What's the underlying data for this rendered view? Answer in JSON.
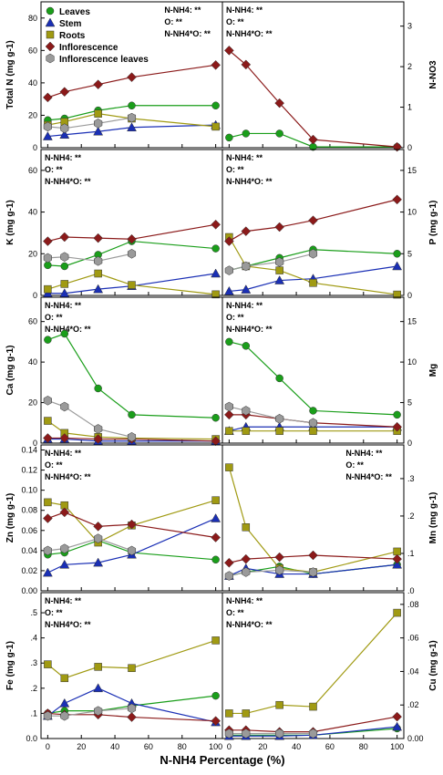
{
  "figure": {
    "xlabel": "N-NH4 Percentage (%)",
    "xticks": [
      0,
      20,
      40,
      60,
      80,
      100
    ],
    "xlim": [
      -4,
      104
    ]
  },
  "legend": [
    {
      "name": "Leaves",
      "color": "#1a9e1a",
      "marker": "circle"
    },
    {
      "name": "Stem",
      "color": "#1a2fb5",
      "marker": "triangle"
    },
    {
      "name": "Roots",
      "color": "#a09a12",
      "marker": "square"
    },
    {
      "name": "Inflorescence",
      "color": "#8b1a1a",
      "marker": "diamond"
    },
    {
      "name": "Inflorescence leaves",
      "color": "#9a9a9a",
      "marker": "hexagon"
    }
  ],
  "chart_data": [
    {
      "type": "line",
      "ylabel": "Total N (mg g-1)",
      "axis_side": "left",
      "ylim": [
        0,
        90
      ],
      "yticks": [
        "0",
        "20",
        "40",
        "60",
        "80"
      ],
      "ytick_values": [
        0,
        20,
        40,
        60,
        80
      ],
      "annotations": [
        "N-NH4: **",
        "O: **",
        "N-NH4*O: **"
      ],
      "ann_pos": "top-right",
      "x": [
        0,
        10,
        30,
        50,
        100
      ],
      "series": [
        {
          "name": "Leaves",
          "values": [
            17,
            18,
            23,
            26,
            26
          ]
        },
        {
          "name": "Stem",
          "values": [
            7,
            8,
            10,
            12.5,
            14
          ]
        },
        {
          "name": "Roots",
          "values": [
            14,
            16,
            21,
            18,
            13
          ]
        },
        {
          "name": "Inflorescence",
          "values": [
            31,
            34.5,
            39,
            43.5,
            51
          ]
        },
        {
          "name": "Inflorescence leaves",
          "values": [
            13,
            12,
            15,
            18.5,
            null
          ]
        }
      ]
    },
    {
      "type": "line",
      "ylabel": "N-NO3",
      "axis_side": "right",
      "ylim": [
        0,
        3.6
      ],
      "yticks": [
        "0",
        "1",
        "2",
        "3"
      ],
      "ytick_values": [
        0,
        1,
        2,
        3
      ],
      "annotations": [
        "N-NH4: **",
        "O: **",
        "N-NH4*O: **"
      ],
      "ann_pos": "top-left",
      "x": [
        0,
        10,
        30,
        50,
        100
      ],
      "series": [
        {
          "name": "Leaves",
          "values": [
            0.25,
            0.35,
            0.35,
            0.02,
            0.02
          ]
        },
        {
          "name": "Inflorescence",
          "values": [
            2.4,
            2.05,
            1.1,
            0.2,
            0.02
          ]
        }
      ]
    },
    {
      "type": "line",
      "ylabel": "K (mg g-1)",
      "axis_side": "left",
      "ylim": [
        0,
        70
      ],
      "yticks": [
        "0",
        "20",
        "40",
        "60"
      ],
      "ytick_values": [
        0,
        20,
        40,
        60
      ],
      "annotations": [
        "N-NH4: **",
        "O: **",
        "N-NH4*O: **"
      ],
      "ann_pos": "top-left",
      "x": [
        0,
        10,
        30,
        50,
        100
      ],
      "series": [
        {
          "name": "Leaves",
          "values": [
            14.5,
            14,
            19.5,
            26,
            22.5
          ]
        },
        {
          "name": "Stem",
          "values": [
            1,
            1,
            3,
            4.5,
            10.5
          ]
        },
        {
          "name": "Roots",
          "values": [
            3,
            5.5,
            10.5,
            5,
            0.5
          ]
        },
        {
          "name": "Inflorescence",
          "values": [
            26,
            28,
            27.5,
            27,
            34
          ]
        },
        {
          "name": "Inflorescence leaves",
          "values": [
            18,
            18.5,
            16.5,
            20,
            null
          ]
        }
      ]
    },
    {
      "type": "line",
      "ylabel": "P (mg g-1)",
      "axis_side": "right",
      "ylim": [
        0,
        17.5
      ],
      "yticks": [
        "0",
        "5",
        "10",
        "15"
      ],
      "ytick_values": [
        0,
        5,
        10,
        15
      ],
      "annotations": [
        "N-NH4: **",
        "O: **",
        "N-NH4*O: **"
      ],
      "ann_pos": "top-left",
      "x": [
        0,
        10,
        30,
        50,
        100
      ],
      "series": [
        {
          "name": "Leaves",
          "values": [
            3,
            3.5,
            4.5,
            5.5,
            5
          ]
        },
        {
          "name": "Stem",
          "values": [
            0.5,
            0.7,
            1.8,
            2,
            3.5
          ]
        },
        {
          "name": "Roots",
          "values": [
            7,
            3.5,
            3,
            1.5,
            0.1
          ]
        },
        {
          "name": "Inflorescence",
          "values": [
            6.5,
            7.7,
            8.2,
            9,
            11.5
          ]
        },
        {
          "name": "Inflorescence leaves",
          "values": [
            3,
            3.5,
            4,
            5,
            null
          ]
        }
      ]
    },
    {
      "type": "line",
      "ylabel": "Ca (mg g-1)",
      "axis_side": "left",
      "ylim": [
        0,
        72
      ],
      "yticks": [
        "0",
        "20",
        "40",
        "60"
      ],
      "ytick_values": [
        0,
        20,
        40,
        60
      ],
      "annotations": [
        "N-NH4: **",
        "O: **",
        "N-NH4*O: **"
      ],
      "ann_pos": "top-left",
      "x": [
        0,
        10,
        30,
        50,
        100
      ],
      "series": [
        {
          "name": "Leaves",
          "values": [
            51,
            54,
            27,
            14,
            12.5
          ]
        },
        {
          "name": "Stem",
          "values": [
            2,
            2,
            1,
            1,
            1
          ]
        },
        {
          "name": "Roots",
          "values": [
            11,
            5,
            3,
            2.5,
            2
          ]
        },
        {
          "name": "Inflorescence",
          "values": [
            2.5,
            2.5,
            2,
            2,
            1
          ]
        },
        {
          "name": "Inflorescence leaves",
          "values": [
            21,
            18,
            7,
            3,
            null
          ]
        }
      ]
    },
    {
      "type": "line",
      "ylabel": "Mg",
      "axis_side": "right",
      "ylim": [
        0,
        18
      ],
      "yticks": [
        "0",
        "5",
        "10",
        "15"
      ],
      "ytick_values": [
        0,
        5,
        10,
        15
      ],
      "annotations": [
        "N-NH4: **",
        "O: **",
        "N-NH4*O: **"
      ],
      "ann_pos": "top-left",
      "x": [
        0,
        10,
        30,
        50,
        100
      ],
      "series": [
        {
          "name": "Leaves",
          "values": [
            12.5,
            12,
            8,
            4,
            3.5
          ]
        },
        {
          "name": "Stem",
          "values": [
            1.5,
            2,
            2,
            2,
            2
          ]
        },
        {
          "name": "Roots",
          "values": [
            1.5,
            1.5,
            1.5,
            1.5,
            1.5
          ]
        },
        {
          "name": "Inflorescence",
          "values": [
            3.5,
            3.5,
            3,
            2.5,
            2
          ]
        },
        {
          "name": "Inflorescence leaves",
          "values": [
            4.5,
            4,
            3,
            2.5,
            null
          ]
        }
      ]
    },
    {
      "type": "line",
      "ylabel": "Zn (mg g-1)",
      "axis_side": "left",
      "ylim": [
        0,
        0.145
      ],
      "yticks": [
        "0.00",
        "0.02",
        "0.04",
        "0.06",
        "0.08",
        "0.10",
        "0.12",
        "0.14"
      ],
      "ytick_values": [
        0,
        0.02,
        0.04,
        0.06,
        0.08,
        0.1,
        0.12,
        0.14
      ],
      "annotations": [
        "N-NH4: **",
        "O: **",
        "N-NH4*O: **"
      ],
      "ann_pos": "top-left",
      "x": [
        0,
        10,
        30,
        50,
        100
      ],
      "series": [
        {
          "name": "Leaves",
          "values": [
            0.036,
            0.038,
            0.05,
            0.038,
            0.031
          ]
        },
        {
          "name": "Stem",
          "values": [
            0.018,
            0.026,
            0.028,
            0.036,
            0.072
          ]
        },
        {
          "name": "Roots",
          "values": [
            0.088,
            0.085,
            0.048,
            0.065,
            0.09
          ]
        },
        {
          "name": "Inflorescence",
          "values": [
            0.072,
            0.078,
            0.064,
            0.066,
            0.053
          ]
        },
        {
          "name": "Inflorescence leaves",
          "values": [
            0.04,
            0.042,
            0.052,
            0.04,
            null
          ]
        }
      ]
    },
    {
      "type": "line",
      "ylabel": "Mn (mg g-1)",
      "axis_side": "right",
      "ylim": [
        0,
        0.39
      ],
      "yticks": [
        ".0",
        ".1",
        ".2",
        ".3"
      ],
      "ytick_values": [
        0,
        0.1,
        0.2,
        0.3
      ],
      "annotations": [
        "N-NH4: **",
        "O: **",
        "N-NH4*O: **"
      ],
      "ann_pos": "top-right",
      "x": [
        0,
        10,
        30,
        50,
        100
      ],
      "series": [
        {
          "name": "Leaves",
          "values": [
            0.04,
            0.05,
            0.065,
            0.045,
            0.07
          ]
        },
        {
          "name": "Stem",
          "values": [
            0.04,
            0.06,
            0.045,
            0.045,
            0.07
          ]
        },
        {
          "name": "Roots",
          "values": [
            0.33,
            0.17,
            0.06,
            0.05,
            0.105
          ]
        },
        {
          "name": "Inflorescence",
          "values": [
            0.075,
            0.085,
            0.09,
            0.095,
            0.085
          ]
        },
        {
          "name": "Inflorescence leaves",
          "values": [
            0.04,
            0.05,
            0.055,
            0.05,
            null
          ]
        }
      ]
    },
    {
      "type": "line",
      "ylabel": "Fe (mg g-1)",
      "axis_side": "left",
      "ylim": [
        0,
        0.58
      ],
      "yticks": [
        "0.0",
        ".1",
        ".2",
        ".3",
        ".4",
        ".5"
      ],
      "ytick_values": [
        0,
        0.1,
        0.2,
        0.3,
        0.4,
        0.5
      ],
      "annotations": [
        "N-NH4: **",
        "O: **",
        "N-NH4*O: **"
      ],
      "ann_pos": "top-left",
      "x": [
        0,
        10,
        30,
        50,
        100
      ],
      "series": [
        {
          "name": "Leaves",
          "values": [
            0.1,
            0.11,
            0.11,
            0.13,
            0.17
          ]
        },
        {
          "name": "Stem",
          "values": [
            0.09,
            0.14,
            0.2,
            0.14,
            0.065
          ]
        },
        {
          "name": "Roots",
          "values": [
            0.295,
            0.24,
            0.285,
            0.28,
            0.39
          ]
        },
        {
          "name": "Inflorescence",
          "values": [
            0.1,
            0.095,
            0.095,
            0.085,
            0.07
          ]
        },
        {
          "name": "Inflorescence leaves",
          "values": [
            0.09,
            0.09,
            0.11,
            0.12,
            null
          ]
        }
      ]
    },
    {
      "type": "line",
      "ylabel": "Cu (mg g-1)",
      "axis_side": "right",
      "ylim": [
        0,
        0.087
      ],
      "yticks": [
        "0.00",
        ".02",
        ".04",
        ".06",
        ".08"
      ],
      "ytick_values": [
        0,
        0.02,
        0.04,
        0.06,
        0.08
      ],
      "annotations": [
        "N-NH4: **",
        "O: **",
        "N-NH4*O: **"
      ],
      "ann_pos": "top-left",
      "x": [
        0,
        10,
        30,
        50,
        100
      ],
      "series": [
        {
          "name": "Leaves",
          "values": [
            0.002,
            0.002,
            0.002,
            0.002,
            0.006
          ]
        },
        {
          "name": "Stem",
          "values": [
            0.0015,
            0.0015,
            0.0015,
            0.002,
            0.007
          ]
        },
        {
          "name": "Roots",
          "values": [
            0.015,
            0.015,
            0.02,
            0.019,
            0.075
          ]
        },
        {
          "name": "Inflorescence",
          "values": [
            0.005,
            0.005,
            0.004,
            0.004,
            0.013
          ]
        },
        {
          "name": "Inflorescence leaves",
          "values": [
            0.003,
            0.003,
            0.003,
            0.003,
            null
          ]
        }
      ]
    }
  ]
}
